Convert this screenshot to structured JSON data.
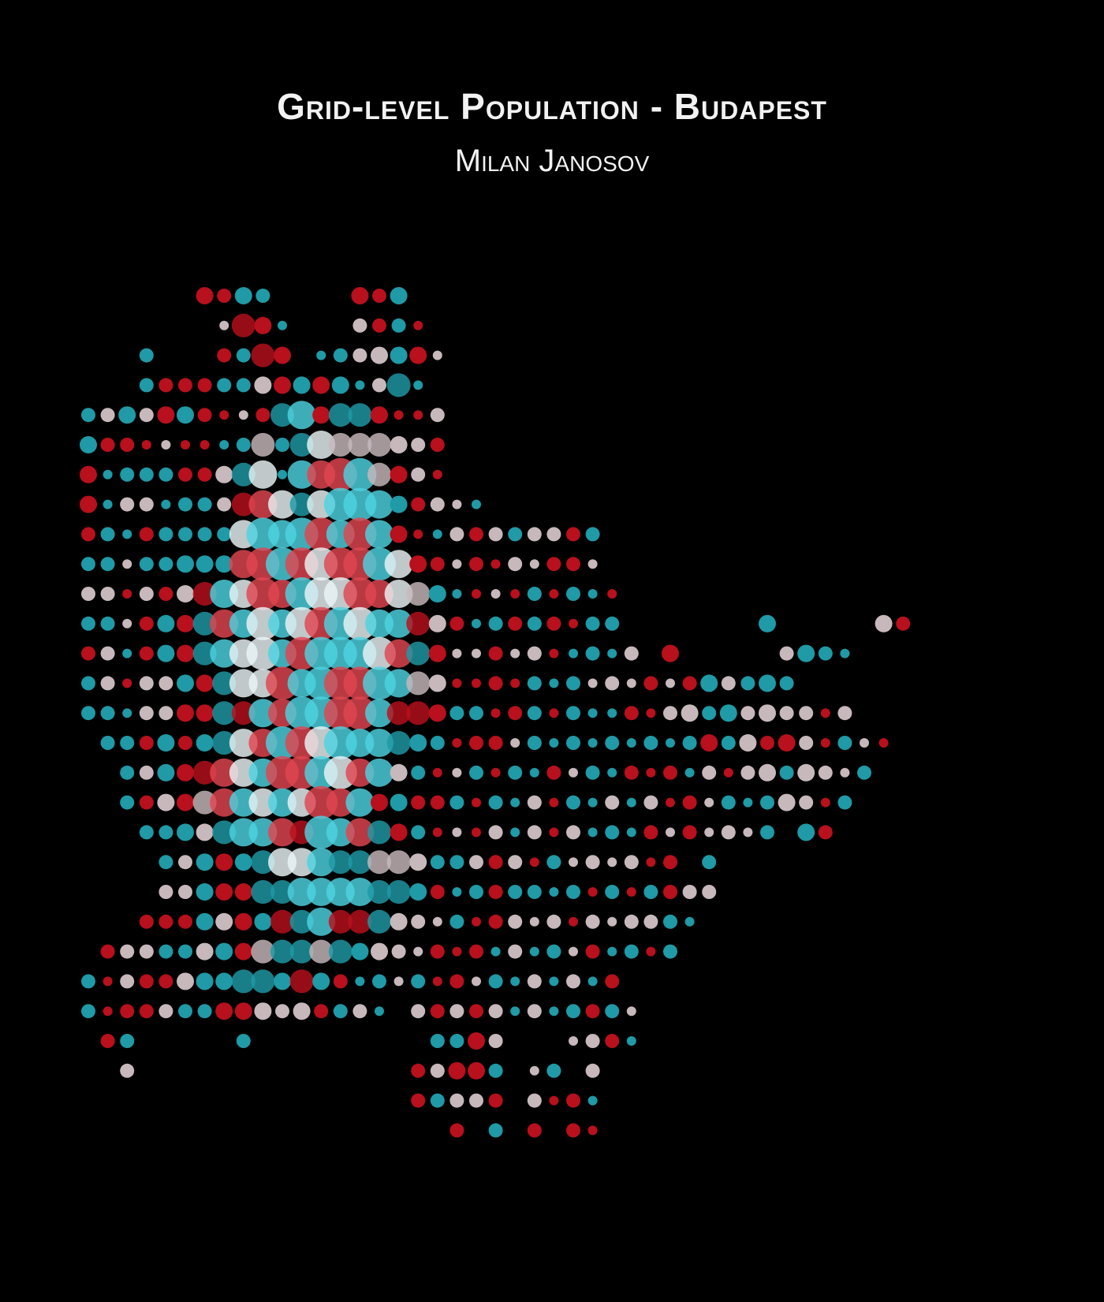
{
  "title": "Grid-level Population - Budapest",
  "subtitle": "Milan Janosov",
  "colors": {
    "background": "#000000",
    "text": "#f2f2f2",
    "palette": [
      "#1f9aa6",
      "#b8101c",
      "#c7b8bc",
      "#4dd3e0",
      "#e04550",
      "#eaf4f6"
    ]
  },
  "map": {
    "kind": "grid dot map",
    "size_encodes": "population per grid cell",
    "rows": [
      "......2121....212.................................",
      ".......0320...1110................................",
      "...1...1132.0112220...............................",
      "...111111222220130................................",
      "1121221001342332001...............................",
      "2110000013134333211...............................",
      "2011111234044553210...............................",
      "201101113443455421100.............................",
      "110111114545545420011111111.......................",
      "110112224555555542101010110.......................",
      "1101123445455554432000010100......................",
      "1101223445455554432101111011.......2.....21.......",
      "11012234454555554320010100101.2.....1210..........",
      "1101122344545555432001010101010121121.............",
      "1101122334455554332110110100101212121101..........",
      ".11121234455554432101101010101012121210100........",
      "..112234445555442100101010101010101212101.........",
      "..11223444445442211101010101010101012101..........",
      "...112234443544321000101010101010101.21...........",
      "....112223444333321111101010101.1.................",
      "....11222334444332101111010101111.................",
      "...11122223343332101011010101110..................",
      ".111112223333322101010101010101...................",
      "1011122233232101010101010101......................",
      "1011111222121110.111110101110.....................",
      ".11.....1.........1121...0110.....................",
      "..1..............11221.01.1.......................",
      ".................11111.1010.......................",
      "...................1.1.1.10......................."
    ]
  }
}
